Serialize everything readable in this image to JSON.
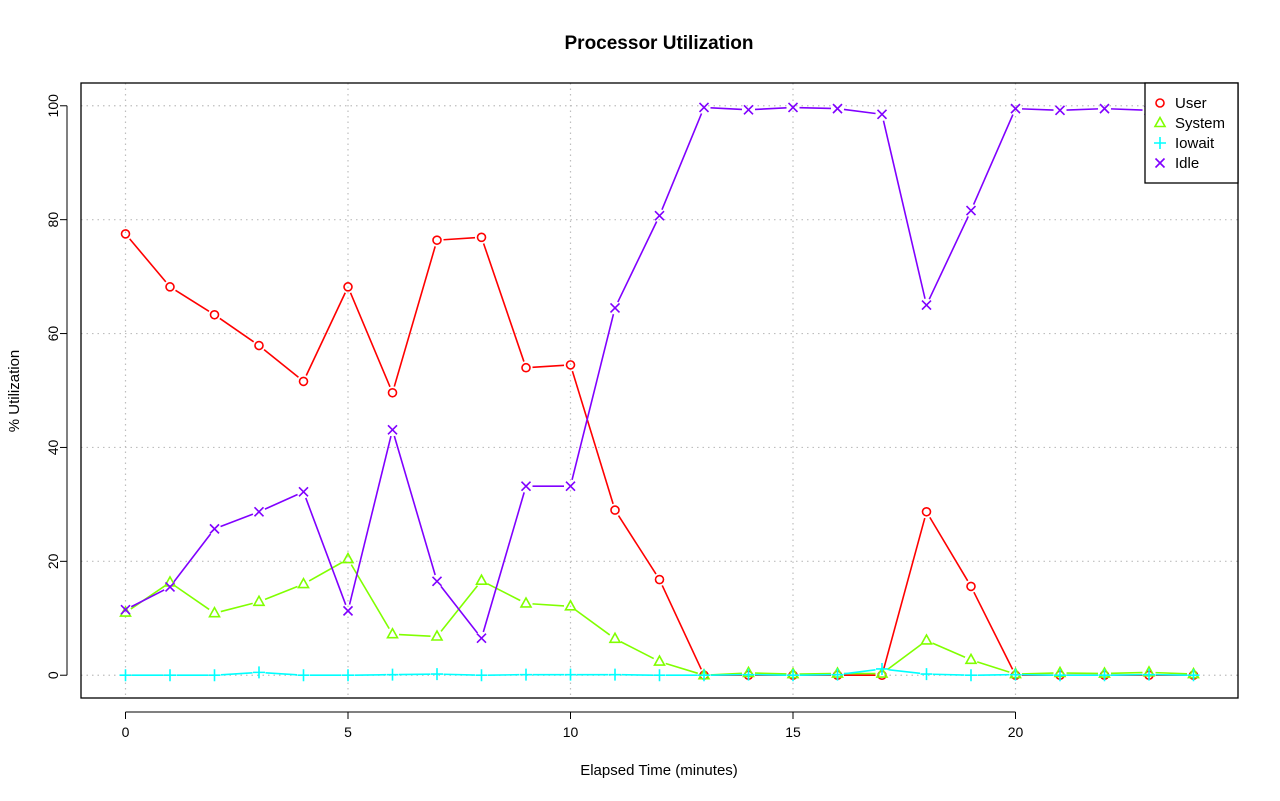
{
  "chart_data": {
    "type": "line",
    "title": "Processor Utilization",
    "xlabel": "Elapsed Time (minutes)",
    "ylabel": "% Utilization",
    "xlim": [
      -1,
      25
    ],
    "ylim": [
      -4,
      104
    ],
    "x_ticks": [
      0,
      5,
      10,
      15,
      20
    ],
    "y_ticks": [
      0,
      20,
      40,
      60,
      80,
      100
    ],
    "grid": true,
    "legend": "top-right",
    "x": [
      0,
      1,
      2,
      3,
      4,
      5,
      6,
      7,
      8,
      9,
      10,
      11,
      12,
      13,
      14,
      15,
      16,
      17,
      18,
      19,
      20,
      21,
      22,
      23,
      24
    ],
    "series": [
      {
        "name": "User",
        "color": "#ff0000",
        "marker": "circle",
        "values": [
          77.5,
          68.2,
          63.3,
          57.9,
          51.6,
          68.2,
          49.6,
          76.4,
          76.9,
          54.0,
          54.5,
          29.0,
          16.8,
          0.0,
          0.0,
          0.0,
          0.0,
          0.0,
          28.7,
          15.6,
          0.0,
          0.0,
          0.0,
          0.0,
          0.0
        ]
      },
      {
        "name": "System",
        "color": "#80ff00",
        "marker": "triangle",
        "values": [
          11.0,
          16.3,
          10.9,
          12.9,
          16.0,
          20.4,
          7.2,
          6.8,
          16.6,
          12.6,
          12.1,
          6.4,
          2.4,
          0.0,
          0.4,
          0.2,
          0.3,
          0.3,
          6.1,
          2.7,
          0.2,
          0.4,
          0.3,
          0.5,
          0.2
        ]
      },
      {
        "name": "Iowait",
        "color": "#00ffff",
        "marker": "plus",
        "values": [
          0.0,
          0.0,
          0.0,
          0.5,
          0.0,
          0.0,
          0.1,
          0.2,
          0.0,
          0.1,
          0.1,
          0.1,
          0.0,
          0.0,
          0.1,
          0.0,
          0.1,
          1.1,
          0.2,
          0.0,
          0.1,
          0.0,
          0.0,
          0.1,
          0.0
        ]
      },
      {
        "name": "Idle",
        "color": "#8000ff",
        "marker": "x",
        "values": [
          11.5,
          15.5,
          25.7,
          28.7,
          32.2,
          11.3,
          43.1,
          16.5,
          6.5,
          33.2,
          33.2,
          64.5,
          80.7,
          99.7,
          99.3,
          99.7,
          99.5,
          98.5,
          65.0,
          81.6,
          99.5,
          99.2,
          99.5,
          99.2,
          99.5
        ]
      }
    ]
  }
}
